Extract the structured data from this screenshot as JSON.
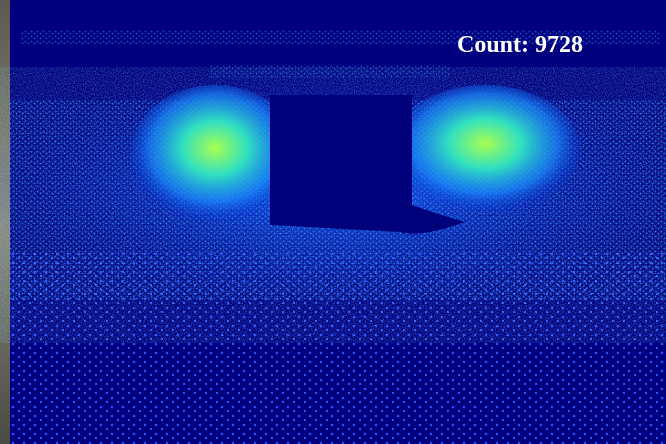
{
  "overlay": {
    "text": "Count: 9728"
  }
}
